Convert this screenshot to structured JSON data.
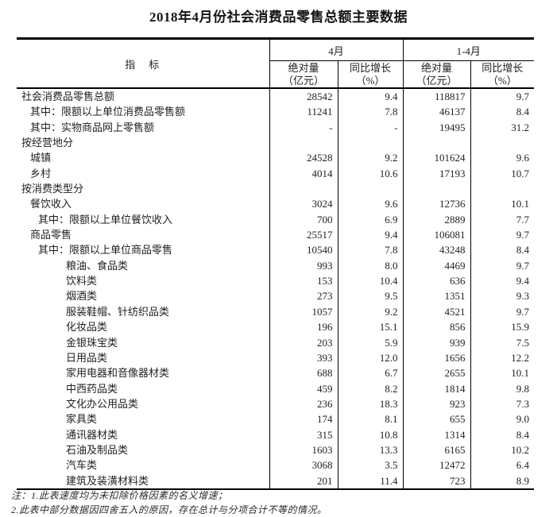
{
  "page": {
    "title": "2018年4月份社会消费品零售总额主要数据"
  },
  "table": {
    "header": {
      "indicator": "指　标",
      "groups": [
        {
          "label": "4月"
        },
        {
          "label": "1-4月"
        }
      ],
      "subcols": [
        {
          "l1": "绝对量",
          "l2": "（亿元）"
        },
        {
          "l1": "同比增长",
          "l2": "（%）"
        },
        {
          "l1": "绝对量",
          "l2": "（亿元）"
        },
        {
          "l1": "同比增长",
          "l2": "（%）"
        }
      ]
    },
    "rows": [
      {
        "label": "社会消费品零售总额",
        "indent": 0,
        "values": [
          "28542",
          "9.4",
          "118817",
          "9.7"
        ]
      },
      {
        "label": "其中：限额以上单位消费品零售额",
        "indent": 1,
        "values": [
          "11241",
          "7.8",
          "46137",
          "8.4"
        ]
      },
      {
        "label": "其中：实物商品网上零售额",
        "indent": 1,
        "values": [
          "-",
          "-",
          "19495",
          "31.2"
        ]
      },
      {
        "label": "按经营地分",
        "indent": 0,
        "values": [
          "",
          "",
          "",
          ""
        ]
      },
      {
        "label": "城镇",
        "indent": 1,
        "values": [
          "24528",
          "9.2",
          "101624",
          "9.6"
        ]
      },
      {
        "label": "乡村",
        "indent": 1,
        "values": [
          "4014",
          "10.6",
          "17193",
          "10.7"
        ]
      },
      {
        "label": "按消费类型分",
        "indent": 0,
        "values": [
          "",
          "",
          "",
          ""
        ]
      },
      {
        "label": "餐饮收入",
        "indent": 1,
        "values": [
          "3024",
          "9.6",
          "12736",
          "10.1"
        ]
      },
      {
        "label": "其中：限额以上单位餐饮收入",
        "indent": 2,
        "values": [
          "700",
          "6.9",
          "2889",
          "7.7"
        ]
      },
      {
        "label": "商品零售",
        "indent": 1,
        "values": [
          "25517",
          "9.4",
          "106081",
          "9.7"
        ]
      },
      {
        "label": "其中：限额以上单位商品零售",
        "indent": 2,
        "values": [
          "10540",
          "7.8",
          "43248",
          "8.4"
        ]
      },
      {
        "label": "粮油、食品类",
        "indent": 3,
        "values": [
          "993",
          "8.0",
          "4469",
          "9.7"
        ]
      },
      {
        "label": "饮料类",
        "indent": 3,
        "values": [
          "153",
          "10.4",
          "636",
          "9.4"
        ]
      },
      {
        "label": "烟酒类",
        "indent": 3,
        "values": [
          "273",
          "9.5",
          "1351",
          "9.3"
        ]
      },
      {
        "label": "服装鞋帽、针纺织品类",
        "indent": 3,
        "values": [
          "1057",
          "9.2",
          "4521",
          "9.7"
        ]
      },
      {
        "label": "化妆品类",
        "indent": 3,
        "values": [
          "196",
          "15.1",
          "856",
          "15.9"
        ]
      },
      {
        "label": "金银珠宝类",
        "indent": 3,
        "values": [
          "203",
          "5.9",
          "939",
          "7.5"
        ]
      },
      {
        "label": "日用品类",
        "indent": 3,
        "values": [
          "393",
          "12.0",
          "1656",
          "12.2"
        ]
      },
      {
        "label": "家用电器和音像器材类",
        "indent": 3,
        "values": [
          "688",
          "6.7",
          "2655",
          "10.1"
        ]
      },
      {
        "label": "中西药品类",
        "indent": 3,
        "values": [
          "459",
          "8.2",
          "1814",
          "9.8"
        ]
      },
      {
        "label": "文化办公用品类",
        "indent": 3,
        "values": [
          "236",
          "18.3",
          "923",
          "7.3"
        ]
      },
      {
        "label": "家具类",
        "indent": 3,
        "values": [
          "174",
          "8.1",
          "655",
          "9.0"
        ]
      },
      {
        "label": "通讯器材类",
        "indent": 3,
        "values": [
          "315",
          "10.8",
          "1314",
          "8.4"
        ]
      },
      {
        "label": "石油及制品类",
        "indent": 3,
        "values": [
          "1603",
          "13.3",
          "6165",
          "10.2"
        ]
      },
      {
        "label": "汽车类",
        "indent": 3,
        "values": [
          "3068",
          "3.5",
          "12472",
          "6.4"
        ]
      },
      {
        "label": "建筑及装潢材料类",
        "indent": 3,
        "values": [
          "201",
          "11.4",
          "723",
          "8.9"
        ]
      }
    ]
  },
  "notes": [
    "注：1.此表速度均为未扣除价格因素的名义增速；",
    "2.此表中部分数据因四舍五入的原因，存在总计与分项合计不等的情况。"
  ]
}
